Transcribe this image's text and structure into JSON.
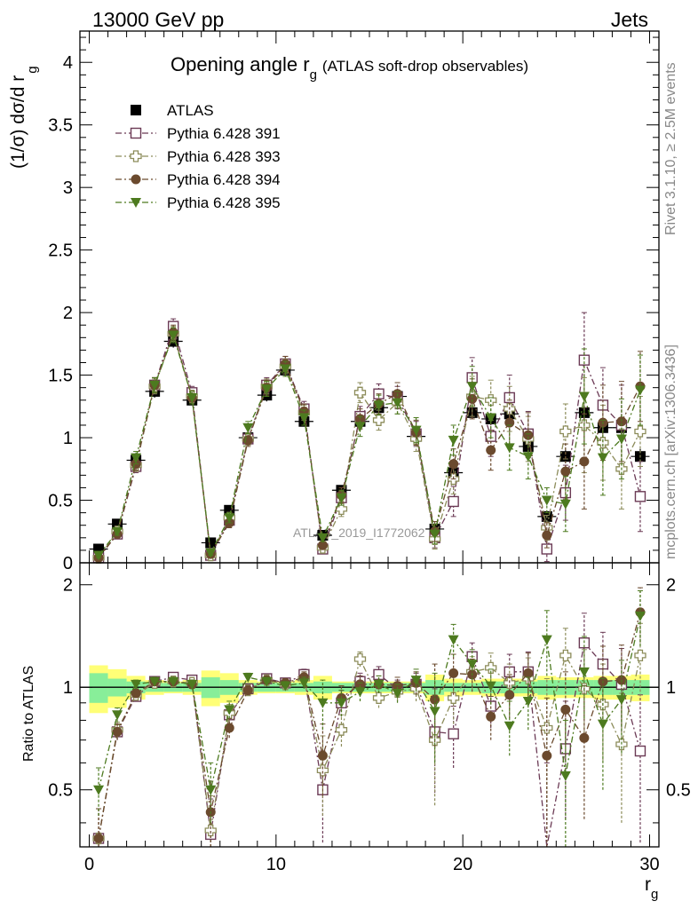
{
  "header": {
    "left": "13000 GeV pp",
    "right": "Jets"
  },
  "side_labels": {
    "rivet": "Rivet 3.1.10, ≥ 2.5M events",
    "mcplots": "mcplots.cern.ch [arXiv:1306.3436]"
  },
  "chart_data": [
    {
      "type": "scatter",
      "panel": "main",
      "title": "Opening angle r",
      "title_sub": "g",
      "title_suffix": "(ATLAS soft-drop observables)",
      "ylabel": "(1/σ) dσ/d r",
      "ylabel_sub": "g",
      "watermark": "ATLAS_2019_I1772062",
      "xlim": [
        -0.5,
        30.5
      ],
      "ylim": [
        0,
        4.25
      ],
      "yticks": [
        0,
        0.5,
        1,
        1.5,
        2,
        2.5,
        3,
        3.5,
        4
      ],
      "ytick_labels": [
        "0",
        "0.5",
        "1",
        "1.5",
        "2",
        "2.5",
        "3",
        "3.5",
        "4"
      ],
      "legend_position": "top-left",
      "x": [
        0.5,
        1.5,
        2.5,
        3.5,
        4.5,
        5.5,
        6.5,
        7.5,
        8.5,
        9.5,
        10.5,
        11.5,
        12.5,
        13.5,
        14.5,
        15.5,
        16.5,
        17.5,
        18.5,
        19.5,
        20.5,
        21.5,
        22.5,
        23.5,
        24.5,
        25.5,
        26.5,
        27.5,
        28.5,
        29.5
      ],
      "series": [
        {
          "name": "ATLAS",
          "color": "#000000",
          "marker": "square-filled",
          "values": [
            0.11,
            0.31,
            0.82,
            1.37,
            1.77,
            1.3,
            0.16,
            0.42,
            1.0,
            1.34,
            1.54,
            1.13,
            0.22,
            0.58,
            1.13,
            1.24,
            1.33,
            1.01,
            0.27,
            0.72,
            1.2,
            1.15,
            1.19,
            0.93,
            0.37,
            0.85,
            1.2,
            1.08,
            1.08,
            0.85
          ],
          "errors": [
            0.02,
            0.03,
            0.04,
            0.05,
            0.05,
            0.04,
            0.02,
            0.03,
            0.04,
            0.05,
            0.05,
            0.04,
            0.02,
            0.03,
            0.04,
            0.05,
            0.05,
            0.04,
            0.02,
            0.03,
            0.05,
            0.05,
            0.05,
            0.05,
            0.03,
            0.05,
            0.06,
            0.06,
            0.06,
            0.06
          ]
        },
        {
          "name": "Pythia 6.428 391",
          "color": "#6b3a55",
          "marker": "square-open",
          "values": [
            0.04,
            0.23,
            0.77,
            1.42,
            1.89,
            1.36,
            0.06,
            0.34,
            0.99,
            1.42,
            1.59,
            1.23,
            0.11,
            0.52,
            1.17,
            1.35,
            1.32,
            1.03,
            0.2,
            0.49,
            1.48,
            1.01,
            1.32,
            1.03,
            0.11,
            0.56,
            1.62,
            1.26,
            1.1,
            0.53
          ],
          "errors": [
            0.02,
            0.03,
            0.05,
            0.06,
            0.06,
            0.05,
            0.02,
            0.04,
            0.05,
            0.06,
            0.06,
            0.06,
            0.03,
            0.06,
            0.08,
            0.08,
            0.09,
            0.1,
            0.08,
            0.12,
            0.16,
            0.16,
            0.18,
            0.18,
            0.1,
            0.22,
            0.38,
            0.3,
            0.32,
            0.28
          ]
        },
        {
          "name": "Pythia 6.428 393",
          "color": "#8c8c5a",
          "marker": "cross-open",
          "values": [
            0.04,
            0.25,
            0.78,
            1.41,
            1.83,
            1.33,
            0.06,
            0.36,
            0.99,
            1.41,
            1.57,
            1.2,
            0.12,
            0.43,
            1.36,
            1.14,
            1.28,
            0.99,
            0.19,
            0.67,
            1.33,
            1.3,
            1.23,
            0.99,
            0.28,
            1.05,
            1.1,
            0.96,
            0.75,
            1.05
          ],
          "errors": [
            0.02,
            0.03,
            0.05,
            0.06,
            0.06,
            0.05,
            0.02,
            0.04,
            0.05,
            0.06,
            0.06,
            0.06,
            0.03,
            0.06,
            0.08,
            0.08,
            0.09,
            0.1,
            0.08,
            0.12,
            0.16,
            0.16,
            0.18,
            0.18,
            0.1,
            0.22,
            0.38,
            0.3,
            0.32,
            0.28
          ]
        },
        {
          "name": "Pythia 6.428 394",
          "color": "#6b4a2e",
          "marker": "circle-filled",
          "values": [
            0.04,
            0.23,
            0.79,
            1.42,
            1.84,
            1.32,
            0.07,
            0.32,
            0.98,
            1.4,
            1.59,
            1.21,
            0.14,
            0.54,
            1.15,
            1.27,
            1.35,
            1.04,
            0.25,
            0.79,
            1.31,
            0.9,
            1.12,
            1.02,
            0.22,
            0.73,
            0.81,
            1.12,
            1.13,
            1.41
          ],
          "errors": [
            0.02,
            0.03,
            0.05,
            0.06,
            0.06,
            0.05,
            0.02,
            0.04,
            0.05,
            0.06,
            0.06,
            0.06,
            0.03,
            0.06,
            0.08,
            0.08,
            0.09,
            0.1,
            0.08,
            0.12,
            0.16,
            0.16,
            0.18,
            0.18,
            0.1,
            0.22,
            0.38,
            0.3,
            0.32,
            0.28
          ]
        },
        {
          "name": "Pythia 6.428 395",
          "color": "#4d7a1f",
          "marker": "triangle-down-filled",
          "values": [
            0.06,
            0.25,
            0.84,
            1.42,
            1.82,
            1.32,
            0.08,
            0.36,
            1.08,
            1.39,
            1.55,
            1.16,
            0.2,
            0.52,
            1.09,
            1.26,
            1.28,
            1.06,
            0.23,
            0.98,
            1.41,
            1.16,
            0.92,
            0.85,
            0.5,
            0.47,
            1.33,
            0.84,
            0.99,
            1.38
          ],
          "errors": [
            0.02,
            0.03,
            0.05,
            0.06,
            0.06,
            0.05,
            0.02,
            0.04,
            0.05,
            0.06,
            0.06,
            0.06,
            0.03,
            0.06,
            0.08,
            0.08,
            0.09,
            0.1,
            0.08,
            0.12,
            0.16,
            0.16,
            0.18,
            0.18,
            0.1,
            0.22,
            0.38,
            0.3,
            0.32,
            0.28
          ]
        }
      ]
    },
    {
      "type": "scatter",
      "panel": "ratio",
      "ylabel": "Ratio to ATLAS",
      "xlabel": "r",
      "xlabel_sub": "g",
      "xlim": [
        -0.5,
        30.5
      ],
      "ylim": [
        0.34,
        2.32
      ],
      "xticks": [
        0,
        10,
        20,
        30
      ],
      "xtick_labels": [
        "0",
        "10",
        "20",
        "30"
      ],
      "yticks": [
        0.5,
        1,
        2
      ],
      "ytick_labels": [
        "0.5",
        "1",
        "2"
      ],
      "reference_line": 1,
      "band_1sigma": [
        0.1,
        0.06,
        0.04,
        0.03,
        0.03,
        0.03,
        0.07,
        0.05,
        0.03,
        0.03,
        0.03,
        0.03,
        0.04,
        0.03,
        0.03,
        0.03,
        0.03,
        0.03,
        0.05,
        0.03,
        0.03,
        0.04,
        0.04,
        0.04,
        0.05,
        0.05,
        0.05,
        0.05,
        0.05,
        0.05
      ],
      "band_2sigma": [
        0.16,
        0.13,
        0.08,
        0.05,
        0.04,
        0.05,
        0.12,
        0.1,
        0.05,
        0.04,
        0.04,
        0.05,
        0.08,
        0.04,
        0.04,
        0.04,
        0.04,
        0.04,
        0.09,
        0.06,
        0.05,
        0.06,
        0.06,
        0.06,
        0.08,
        0.07,
        0.07,
        0.08,
        0.08,
        0.09
      ],
      "x": [
        0.5,
        1.5,
        2.5,
        3.5,
        4.5,
        5.5,
        6.5,
        7.5,
        8.5,
        9.5,
        10.5,
        11.5,
        12.5,
        13.5,
        14.5,
        15.5,
        16.5,
        17.5,
        18.5,
        19.5,
        20.5,
        21.5,
        22.5,
        23.5,
        24.5,
        25.5,
        26.5,
        27.5,
        28.5,
        29.5
      ],
      "series": [
        {
          "name": "Pythia 6.428 391",
          "color": "#6b3a55",
          "marker": "square-open",
          "values": [
            0.36,
            0.74,
            0.94,
            1.04,
            1.07,
            1.05,
            0.37,
            0.83,
            0.99,
            1.06,
            1.03,
            1.09,
            0.5,
            0.9,
            1.04,
            1.09,
            0.99,
            1.02,
            0.74,
            0.73,
            1.23,
            0.88,
            1.11,
            1.11,
            0.3,
            0.66,
            1.35,
            1.17,
            1.02,
            0.65
          ],
          "errors": [
            0.08,
            0.04,
            0.03,
            0.03,
            0.03,
            0.03,
            0.1,
            0.05,
            0.03,
            0.03,
            0.03,
            0.04,
            0.15,
            0.08,
            0.06,
            0.06,
            0.06,
            0.08,
            0.25,
            0.15,
            0.12,
            0.12,
            0.14,
            0.16,
            0.3,
            0.25,
            0.3,
            0.28,
            0.28,
            0.3
          ]
        },
        {
          "name": "Pythia 6.428 393",
          "color": "#8c8c5a",
          "marker": "cross-open",
          "values": [
            0.36,
            0.75,
            0.95,
            1.03,
            1.04,
            1.03,
            0.38,
            0.84,
            0.98,
            1.05,
            1.02,
            1.06,
            0.57,
            0.75,
            1.21,
            0.93,
            0.97,
            0.99,
            0.7,
            0.93,
            1.11,
            1.14,
            1.03,
            1.06,
            0.76,
            1.24,
            0.99,
            0.89,
            0.68,
            1.24
          ],
          "errors": [
            0.08,
            0.04,
            0.03,
            0.03,
            0.03,
            0.03,
            0.1,
            0.05,
            0.03,
            0.03,
            0.03,
            0.04,
            0.15,
            0.08,
            0.06,
            0.06,
            0.06,
            0.08,
            0.25,
            0.15,
            0.12,
            0.12,
            0.14,
            0.16,
            0.3,
            0.25,
            0.3,
            0.28,
            0.28,
            0.3
          ]
        },
        {
          "name": "Pythia 6.428 394",
          "color": "#6b4a2e",
          "marker": "circle-filled",
          "values": [
            0.36,
            0.74,
            0.96,
            1.04,
            1.04,
            1.02,
            0.43,
            0.76,
            0.98,
            1.05,
            1.03,
            1.07,
            0.63,
            0.93,
            1.02,
            1.02,
            1.01,
            1.03,
            0.92,
            1.1,
            1.09,
            0.82,
            0.95,
            1.1,
            0.63,
            0.86,
            0.71,
            1.04,
            1.05,
            1.66
          ],
          "errors": [
            0.08,
            0.04,
            0.03,
            0.03,
            0.03,
            0.03,
            0.1,
            0.05,
            0.03,
            0.03,
            0.03,
            0.04,
            0.15,
            0.08,
            0.06,
            0.06,
            0.06,
            0.08,
            0.25,
            0.15,
            0.12,
            0.12,
            0.14,
            0.16,
            0.3,
            0.25,
            0.3,
            0.28,
            0.28,
            0.3
          ]
        },
        {
          "name": "Pythia 6.428 395",
          "color": "#4d7a1f",
          "marker": "triangle-down-filled",
          "values": [
            0.5,
            0.83,
            1.02,
            1.04,
            1.04,
            1.02,
            0.5,
            0.86,
            1.07,
            1.04,
            1.01,
            1.03,
            0.9,
            0.9,
            0.97,
            1.02,
            0.96,
            1.05,
            0.85,
            1.38,
            1.17,
            1.01,
            0.77,
            0.91,
            1.38,
            0.55,
            1.11,
            0.78,
            0.92,
            1.62
          ],
          "errors": [
            0.08,
            0.04,
            0.03,
            0.03,
            0.03,
            0.03,
            0.1,
            0.05,
            0.03,
            0.03,
            0.03,
            0.04,
            0.15,
            0.08,
            0.06,
            0.06,
            0.06,
            0.08,
            0.25,
            0.15,
            0.12,
            0.12,
            0.14,
            0.16,
            0.3,
            0.25,
            0.3,
            0.28,
            0.28,
            0.3
          ]
        }
      ]
    }
  ]
}
